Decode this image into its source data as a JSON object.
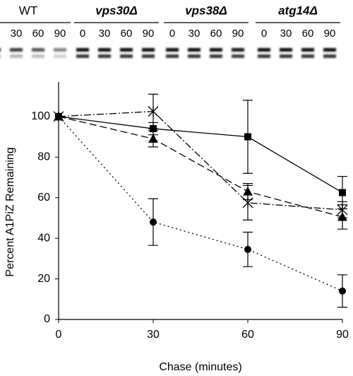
{
  "blot": {
    "strains": [
      "WT",
      "vps30Δ",
      "vps38Δ",
      "atg14Δ"
    ],
    "lanes": [
      "0",
      "30",
      "60",
      "90"
    ]
  },
  "chart_data": {
    "type": "line",
    "x_label": "Chase (minutes)",
    "y_label": "Percent A1PiZ Remaining",
    "x": [
      0,
      30,
      60,
      90
    ],
    "xlim": [
      0,
      90
    ],
    "xticks": [
      0,
      30,
      60,
      90
    ],
    "ylim": [
      0,
      117
    ],
    "yticks": [
      0,
      20,
      40,
      60,
      80,
      100
    ],
    "series": [
      {
        "color": "#000000",
        "marker": "circle",
        "dash": "2,4",
        "values": [
          100,
          48,
          34.5,
          14
        ],
        "errors": [
          null,
          11.5,
          8.5,
          8
        ]
      },
      {
        "color": "#000000",
        "marker": "square",
        "dash": "none",
        "values": [
          100,
          94,
          90,
          62.5
        ],
        "errors": [
          null,
          3,
          18,
          8
        ]
      },
      {
        "color": "#000000",
        "marker": "triangle",
        "dash": "10,5",
        "values": [
          100,
          89,
          63,
          50.5
        ],
        "errors": [
          null,
          4,
          4,
          6
        ]
      },
      {
        "color": "#000000",
        "marker": "star",
        "dash": "10,3,2,3",
        "values": [
          100,
          102.5,
          57.5,
          54
        ],
        "errors": [
          null,
          8.5,
          8.5,
          4
        ]
      }
    ]
  }
}
